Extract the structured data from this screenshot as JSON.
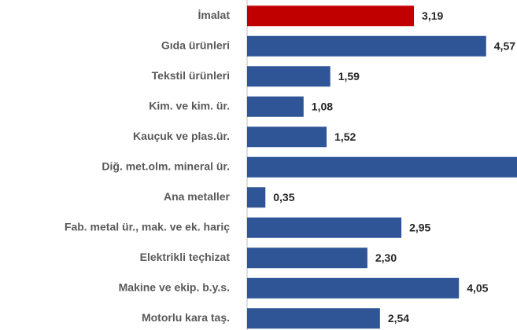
{
  "chart_data": {
    "type": "bar",
    "orientation": "horizontal",
    "categories": [
      "İmalat",
      "Gıda ürünleri",
      "Tekstil ürünleri",
      "Kim. ve kim. ür.",
      "Kauçuk ve plas.ür.",
      "Diğ. met.olm. mineral ür.",
      "Ana metaller",
      "Fab. metal ür., mak. ve ek. hariç",
      "Elektrikli teçhizat",
      "Makine ve ekip. b.y.s.",
      "Motorlu kara taş."
    ],
    "values": [
      3.19,
      4.57,
      1.59,
      1.08,
      1.52,
      5.3,
      0.35,
      2.95,
      2.3,
      4.05,
      2.54
    ],
    "value_labels": [
      "3,19",
      "4,57",
      "1,59",
      "1,08",
      "1,52",
      null,
      "0,35",
      "2,95",
      "2,30",
      "4,05",
      "2,54"
    ],
    "colors": [
      "#c00000",
      "#2f5597",
      "#2f5597",
      "#2f5597",
      "#2f5597",
      "#2f5597",
      "#2f5597",
      "#2f5597",
      "#2f5597",
      "#2f5597",
      "#2f5597"
    ],
    "xlim": [
      0,
      5.16
    ]
  }
}
